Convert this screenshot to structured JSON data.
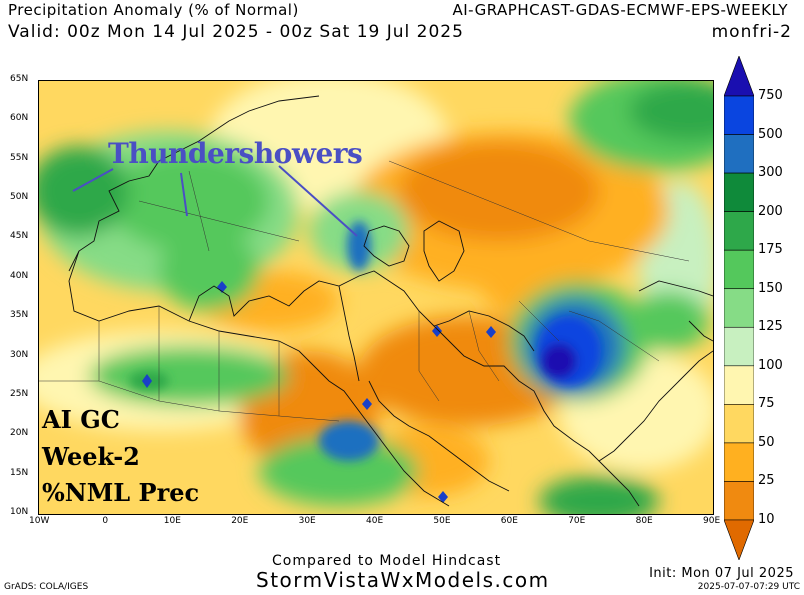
{
  "header": {
    "title_left": "Precipitation Anomaly (% of Normal)",
    "title_right": "AI-GRAPHCAST-GDAS-ECMWF-EPS-WEEKLY",
    "valid_line": "Valid: 00z Mon 14 Jul 2025 - 00z Sat 19 Jul 2025",
    "run_name": "monfri-2"
  },
  "map": {
    "lat_labels": [
      "65N",
      "60N",
      "55N",
      "50N",
      "45N",
      "40N",
      "35N",
      "30N",
      "25N",
      "20N",
      "15N",
      "10N"
    ],
    "lon_labels": [
      "10W",
      "0",
      "10E",
      "20E",
      "30E",
      "40E",
      "50E",
      "60E",
      "70E",
      "80E",
      "90E"
    ],
    "extent": {
      "lon_min": -10,
      "lon_max": 90,
      "lat_min": 10,
      "lat_max": 65
    }
  },
  "annotations": {
    "thunder": "Thundershowers",
    "model_line_1": "AI GC",
    "model_line_2": "Week-2",
    "model_line_3": "%NML Prec"
  },
  "colorbar": {
    "labels": [
      "750",
      "500",
      "300",
      "200",
      "175",
      "150",
      "125",
      "100",
      "75",
      "50",
      "25",
      "10"
    ],
    "colors": [
      "#1a0fb0",
      "#0a45e0",
      "#1f6fc0",
      "#0f8a3a",
      "#2ea84a",
      "#54c85c",
      "#86dc86",
      "#c8f0c0",
      "#fff6b0",
      "#ffd860",
      "#ffb020",
      "#f08a10",
      "#e06a00"
    ]
  },
  "footer": {
    "compare": "Compared to Model Hindcast",
    "site": "StormVistaWxModels.com",
    "grads": "GrADS: COLA/IGES",
    "init": "Init: Mon 07 Jul 2025",
    "timestamp": "2025-07-07-07:29 UTC"
  }
}
